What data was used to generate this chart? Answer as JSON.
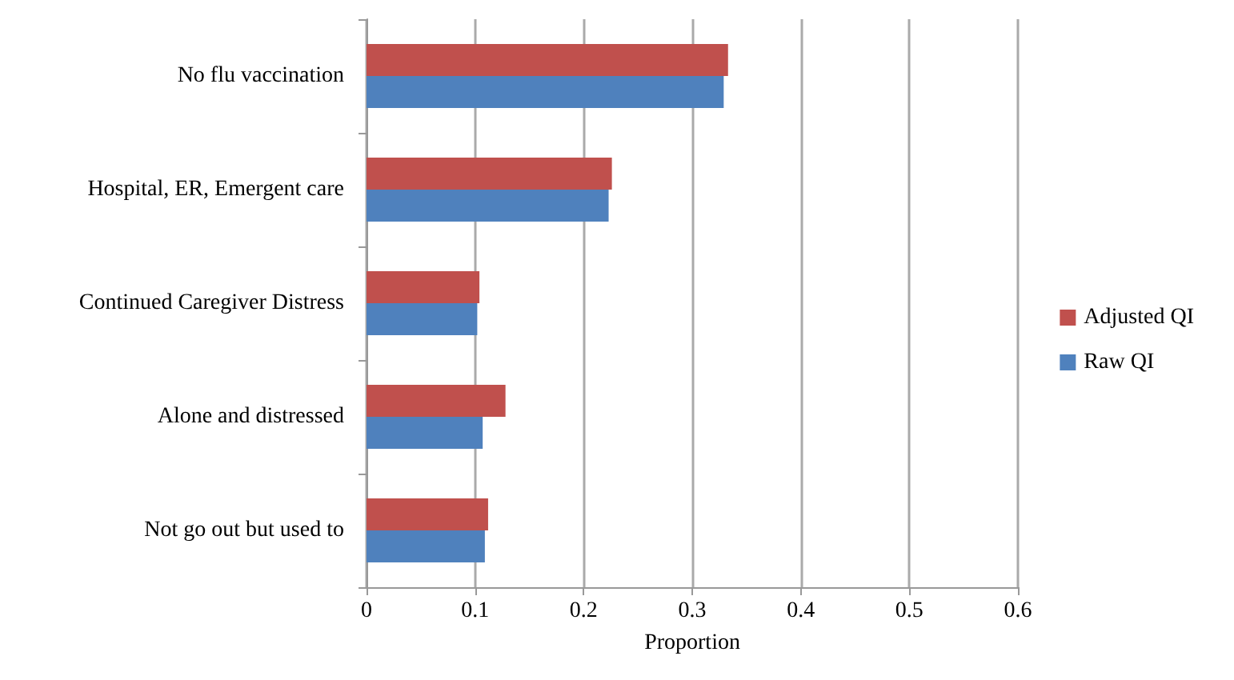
{
  "chart_data": {
    "type": "bar",
    "orientation": "horizontal",
    "xlabel": "Proportion",
    "categories": [
      "No flu vaccination",
      "Hospital, ER, Emergent care",
      "Continued Caregiver Distress",
      "Alone and distressed",
      "Not go out but used to"
    ],
    "series": [
      {
        "name": "Adjusted QI",
        "color": "#c0504d",
        "values": [
          0.333,
          0.226,
          0.104,
          0.128,
          0.112
        ]
      },
      {
        "name": "Raw QI",
        "color": "#4f81bd",
        "values": [
          0.329,
          0.223,
          0.102,
          0.107,
          0.109
        ]
      }
    ],
    "xlim": [
      0,
      0.6
    ],
    "xticks": [
      0,
      0.1,
      0.2,
      0.3,
      0.4,
      0.5,
      0.6
    ],
    "grid": "x",
    "legend": "right"
  }
}
